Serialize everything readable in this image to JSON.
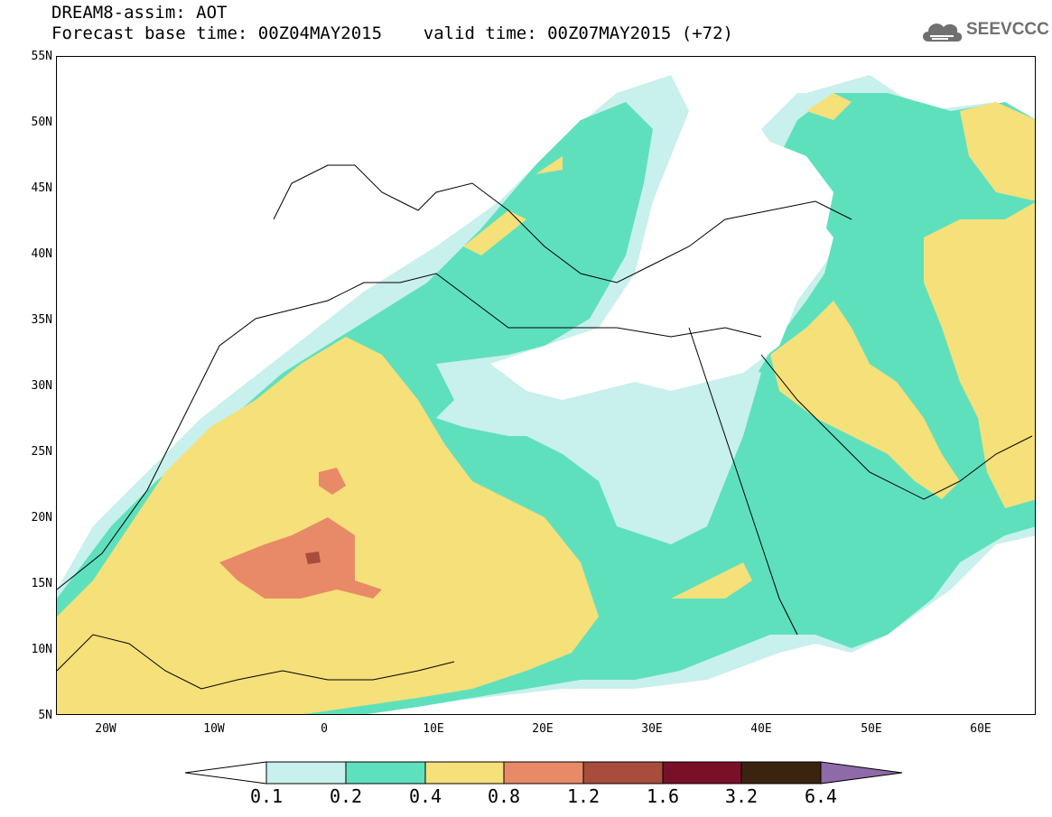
{
  "title": {
    "line1": "DREAM8-assim: AOT",
    "line2": "Forecast base time: 00Z04MAY2015    valid time: 00Z07MAY2015 (+72)"
  },
  "logo": {
    "text": "SEEVCCC",
    "icon": "cloud-icon"
  },
  "map": {
    "projection": "lat-lon",
    "lon_range": [
      -25,
      65
    ],
    "lat_range": [
      5,
      55
    ],
    "y_ticks": [
      "55N",
      "50N",
      "45N",
      "40N",
      "35N",
      "30N",
      "25N",
      "20N",
      "15N",
      "10N",
      "5N"
    ],
    "x_ticks": [
      "20W",
      "10W",
      "0",
      "10E",
      "20E",
      "30E",
      "40E",
      "50E",
      "60E"
    ]
  },
  "legend": {
    "levels": [
      "0.1",
      "0.2",
      "0.4",
      "0.8",
      "1.2",
      "1.6",
      "3.2",
      "6.4"
    ],
    "colors": [
      "#ffffff",
      "#c8f0ec",
      "#5fe0bd",
      "#f5e07a",
      "#e88a68",
      "#a84d3d",
      "#7a1028",
      "#3a2410",
      "#8e6aa8"
    ]
  }
}
